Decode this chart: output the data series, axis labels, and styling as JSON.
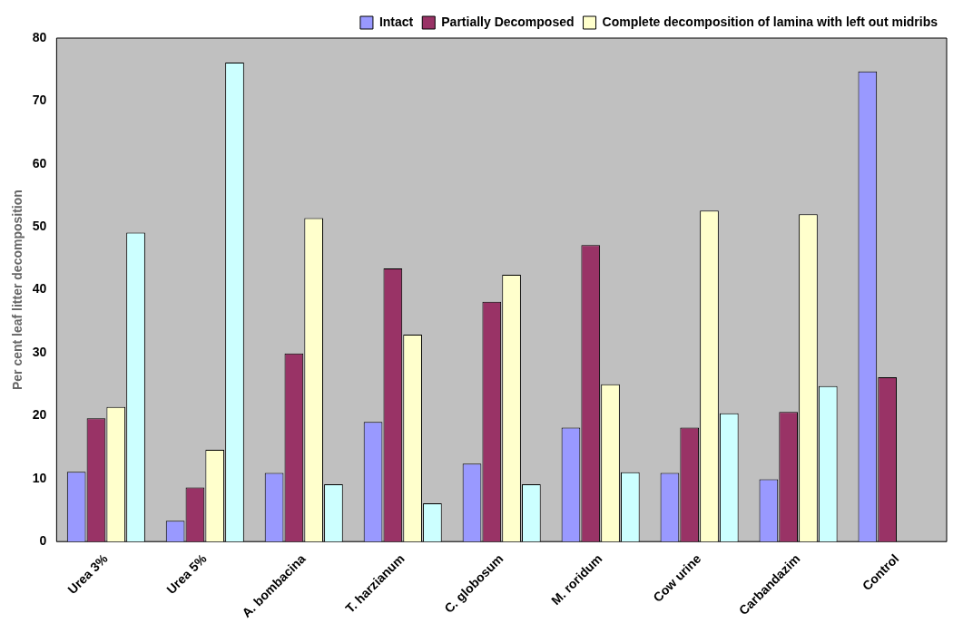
{
  "chart_data": {
    "type": "bar",
    "ylabel": "Per cent leaf litter decomposition",
    "categories": [
      "Urea 3%",
      "Urea 5%",
      "A. bombacina",
      "T. harzianum",
      "C. globosum",
      "M. roridum",
      "Cow urine",
      "Carbandazim",
      "Control"
    ],
    "series": [
      {
        "name": "Intact",
        "color": "#9999ff",
        "values": [
          11.1,
          3.3,
          10.9,
          19,
          12.4,
          18.1,
          10.9,
          9.9,
          74.7
        ]
      },
      {
        "name": "Partially Decomposed",
        "color": "#993366",
        "values": [
          19.6,
          8.6,
          29.9,
          43.4,
          38.1,
          47.1,
          18.1,
          20.6,
          26.1
        ]
      },
      {
        "name": "Complete decomposition of lamina with left out midribs",
        "color": "#ffffcc",
        "values": [
          21.4,
          14.6,
          51.4,
          32.9,
          42.4,
          25,
          52.6,
          52,
          0
        ]
      },
      {
        "color": "#ccffff",
        "values": [
          49.1,
          76.1,
          9.1,
          6.1,
          9.1,
          11,
          20.4,
          24.7,
          0
        ]
      }
    ],
    "ylim": [
      0,
      80
    ],
    "yticks": [
      0,
      10,
      20,
      30,
      40,
      50,
      60,
      70,
      80
    ],
    "grid": false,
    "legend": "top right"
  }
}
